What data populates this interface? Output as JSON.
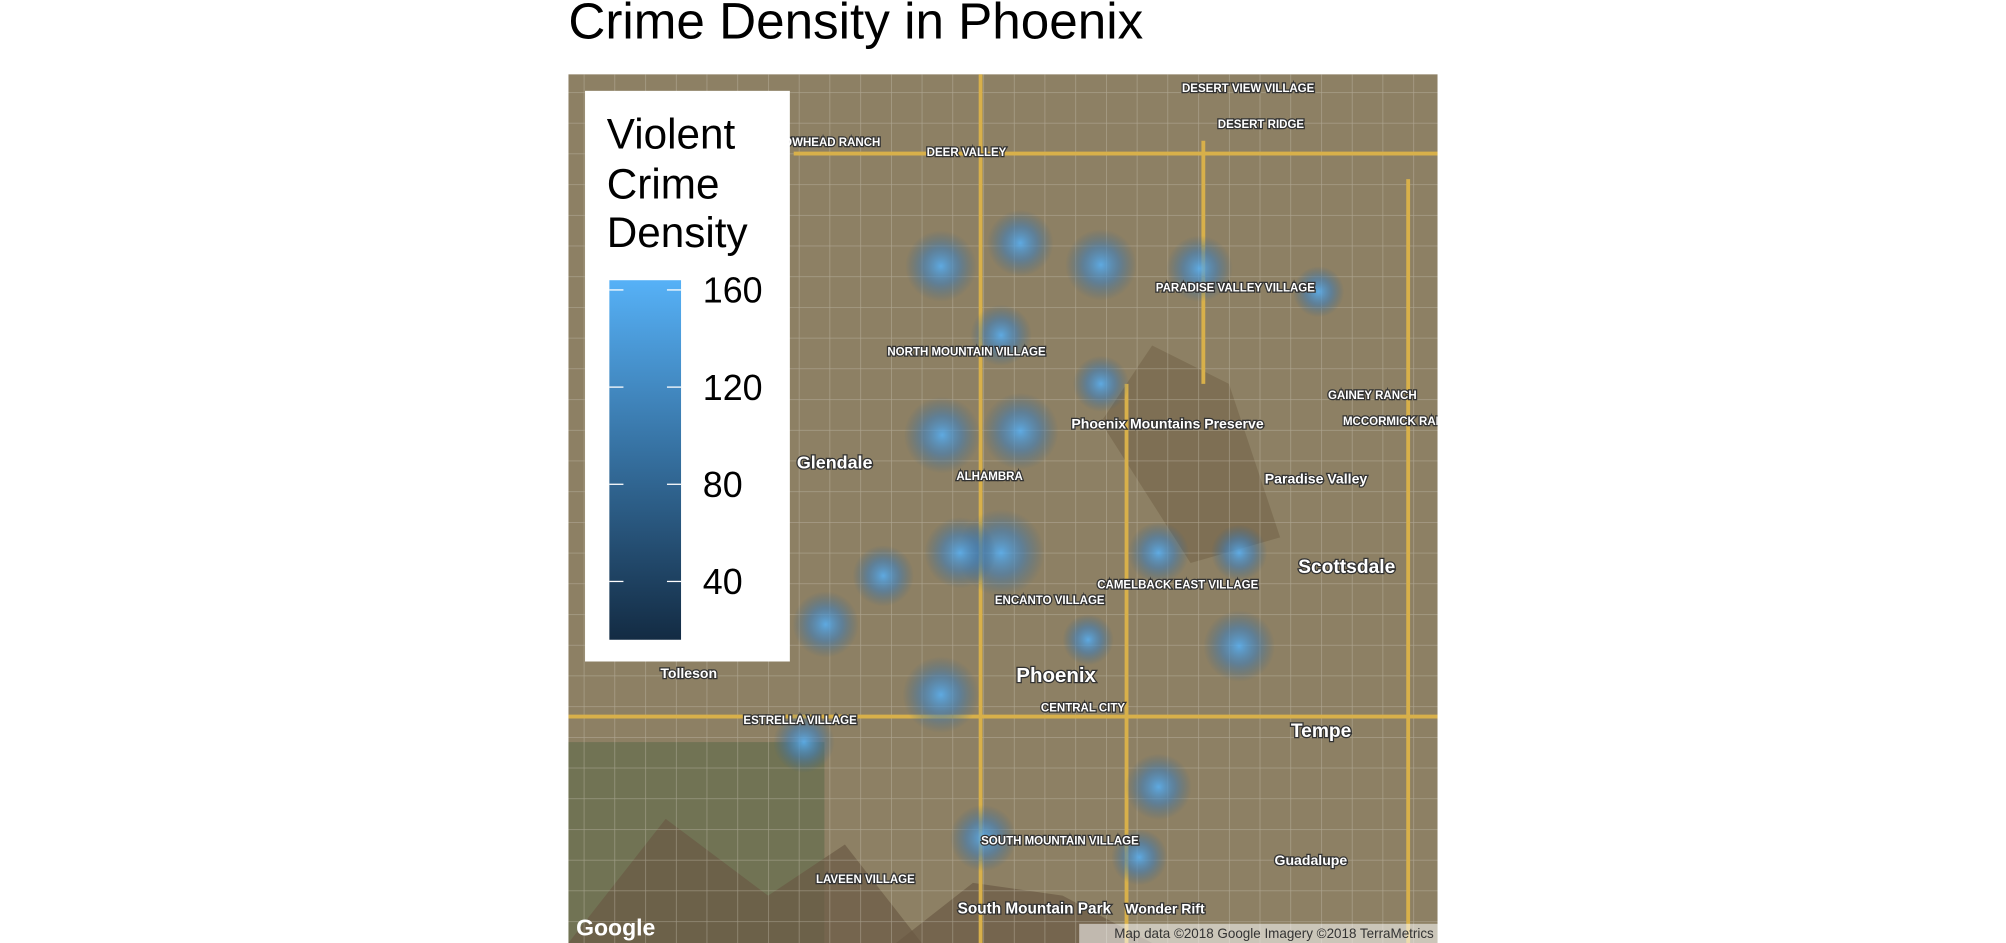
{
  "chart_data": {
    "type": "density_map",
    "title": "Crime Density in Phoenix",
    "legend_title": "Violent Crime Density",
    "colorbar": {
      "lim": [
        16,
        164
      ],
      "ticks": [
        40,
        80,
        120,
        160
      ],
      "low_color": "#132B43",
      "high_color": "#56B1F7"
    },
    "place_labels": [
      "DESERT VIEW VILLAGE",
      "DESERT RIDGE",
      "DEER VALLEY",
      "ARROWHEAD RANCH",
      "PARADISE VALLEY VILLAGE",
      "NORTH MOUNTAIN VILLAGE",
      "Phoenix Mountains Preserve",
      "GAINEY RANCH",
      "MCCORMICK RANCH",
      "Glendale",
      "ALHAMBRA",
      "Paradise Valley",
      "Scottsdale",
      "CAMELBACK EAST VILLAGE",
      "ENCANTO VILLAGE",
      "Tolleson",
      "Phoenix",
      "CENTRAL CITY",
      "ESTRELLA VILLAGE",
      "Tempe",
      "SOUTH MOUNTAIN VILLAGE",
      "Guadalupe",
      "LAVEEN VILLAGE",
      "South Mountain Park",
      "Wonder Rift"
    ],
    "logo": "Google",
    "attribution": "Map data ©2018 Google  Imagery ©2018 TerraMetrics"
  }
}
